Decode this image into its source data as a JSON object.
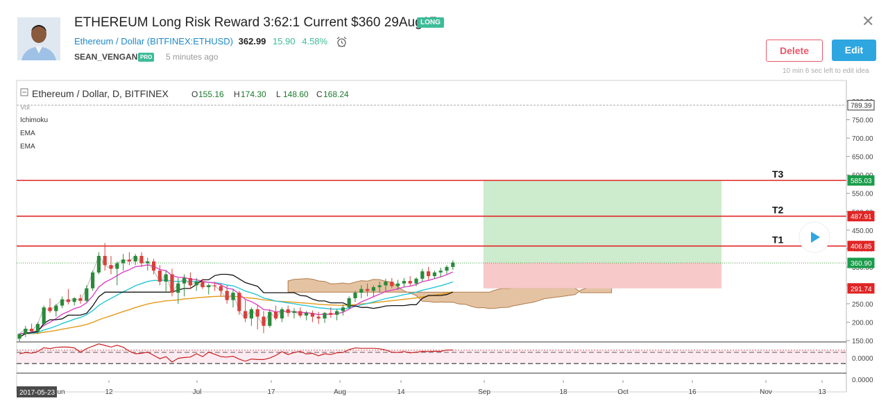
{
  "header": {
    "title": "ETHEREUM Long Risk Reward 3:62:1 Current $360 29Aug17",
    "direction_badge": "LONG",
    "symbol_name": "Ethereum / Dollar",
    "symbol_code": "(BITFINEX:ETHUSD)",
    "price": "362.99",
    "change": "15.90",
    "change_pct": "4.58%",
    "username": "SEAN_VENGAN",
    "user_badge": "PRO",
    "time_ago": "5 minutes ago",
    "delete_label": "Delete",
    "edit_label": "Edit",
    "edit_note": "10 min 6 sec left to edit idea",
    "close_icon": "close-icon"
  },
  "legend": {
    "title": "Ethereum / Dollar, D, BITFINEX",
    "o_label": "O",
    "o": "155.16",
    "h_label": "H",
    "h": "174.30",
    "l_label": "L",
    "l": "148.60",
    "c_label": "C",
    "c": "168.24",
    "indicators": [
      "Vol",
      "Ichimoku",
      "EMA",
      "EMA"
    ]
  },
  "chart_data": {
    "type": "candlestick",
    "symbol": "Ethereum / Dollar, D, BITFINEX",
    "x_ticks": [
      "12",
      "Jul",
      "17",
      "Aug",
      "14",
      "Sep",
      "18",
      "Oct",
      "16",
      "Nov",
      "13"
    ],
    "first_date_label": "2017-05-23",
    "y_ticks": [
      800,
      750,
      700,
      650,
      600,
      550,
      500,
      450,
      400,
      350,
      300,
      250,
      200,
      150
    ],
    "ylim": [
      110,
      820
    ],
    "price_labels": [
      {
        "value": 789.39,
        "text": "789.39",
        "color": "#ffffff",
        "text_color": "#333333"
      },
      {
        "value": 585.03,
        "text": "585.03",
        "color": "#1a9c4a",
        "text_color": "#ffffff"
      },
      {
        "value": 487.91,
        "text": "487.91",
        "color": "#e02424",
        "text_color": "#ffffff"
      },
      {
        "value": 406.85,
        "text": "406.85",
        "color": "#e02424",
        "text_color": "#ffffff"
      },
      {
        "value": 360.9,
        "text": "360.90",
        "color": "#1a9c4a",
        "text_color": "#ffffff"
      },
      {
        "value": 291.74,
        "text": "291.74",
        "color": "#e02424",
        "text_color": "#ffffff"
      }
    ],
    "target_lines": [
      {
        "name": "T3",
        "value": 585.03
      },
      {
        "name": "T2",
        "value": 487.91
      },
      {
        "name": "T1",
        "value": 406.85
      }
    ],
    "position": {
      "entry": 360.9,
      "target": 585.03,
      "stop": 291.74
    },
    "candles": [
      [
        155,
        170,
        148,
        168
      ],
      [
        168,
        190,
        160,
        182
      ],
      [
        182,
        196,
        172,
        175
      ],
      [
        175,
        200,
        168,
        195
      ],
      [
        195,
        245,
        190,
        240
      ],
      [
        240,
        265,
        225,
        230
      ],
      [
        230,
        250,
        215,
        245
      ],
      [
        245,
        270,
        238,
        262
      ],
      [
        262,
        290,
        248,
        255
      ],
      [
        255,
        268,
        245,
        265
      ],
      [
        265,
        275,
        250,
        258
      ],
      [
        258,
        300,
        255,
        292
      ],
      [
        292,
        340,
        285,
        335
      ],
      [
        335,
        390,
        330,
        380
      ],
      [
        380,
        415,
        340,
        355
      ],
      [
        355,
        380,
        330,
        345
      ],
      [
        345,
        365,
        300,
        360
      ],
      [
        360,
        385,
        340,
        370
      ],
      [
        370,
        390,
        355,
        365
      ],
      [
        365,
        385,
        355,
        380
      ],
      [
        380,
        390,
        350,
        360
      ],
      [
        360,
        375,
        340,
        365
      ],
      [
        365,
        372,
        330,
        340
      ],
      [
        340,
        355,
        300,
        310
      ],
      [
        310,
        340,
        280,
        330
      ],
      [
        330,
        345,
        270,
        280
      ],
      [
        280,
        320,
        250,
        305
      ],
      [
        305,
        330,
        270,
        320
      ],
      [
        320,
        335,
        290,
        300
      ],
      [
        300,
        320,
        285,
        310
      ],
      [
        310,
        318,
        290,
        295
      ],
      [
        295,
        305,
        275,
        300
      ],
      [
        300,
        310,
        285,
        298
      ],
      [
        298,
        305,
        270,
        285
      ],
      [
        285,
        300,
        250,
        260
      ],
      [
        260,
        290,
        240,
        280
      ],
      [
        280,
        285,
        220,
        230
      ],
      [
        230,
        260,
        200,
        210
      ],
      [
        210,
        240,
        190,
        235
      ],
      [
        235,
        245,
        180,
        215
      ],
      [
        215,
        230,
        170,
        190
      ],
      [
        190,
        235,
        185,
        228
      ],
      [
        228,
        245,
        205,
        210
      ],
      [
        210,
        240,
        200,
        235
      ],
      [
        235,
        245,
        215,
        225
      ],
      [
        225,
        238,
        210,
        230
      ],
      [
        230,
        240,
        212,
        218
      ],
      [
        218,
        230,
        205,
        225
      ],
      [
        225,
        232,
        200,
        215
      ],
      [
        215,
        228,
        195,
        210
      ],
      [
        210,
        228,
        198,
        225
      ],
      [
        225,
        240,
        212,
        220
      ],
      [
        220,
        235,
        205,
        230
      ],
      [
        230,
        248,
        218,
        240
      ],
      [
        240,
        270,
        235,
        265
      ],
      [
        265,
        285,
        255,
        280
      ],
      [
        280,
        300,
        265,
        290
      ],
      [
        290,
        305,
        270,
        285
      ],
      [
        285,
        300,
        270,
        295
      ],
      [
        295,
        310,
        280,
        300
      ],
      [
        300,
        318,
        285,
        310
      ],
      [
        310,
        320,
        292,
        298
      ],
      [
        298,
        315,
        288,
        305
      ],
      [
        305,
        320,
        295,
        312
      ],
      [
        312,
        325,
        298,
        305
      ],
      [
        305,
        322,
        298,
        318
      ],
      [
        318,
        345,
        310,
        338
      ],
      [
        338,
        350,
        315,
        325
      ],
      [
        325,
        340,
        318,
        335
      ],
      [
        335,
        348,
        322,
        340
      ],
      [
        340,
        355,
        330,
        350
      ],
      [
        350,
        368,
        342,
        362
      ]
    ],
    "position_box": {
      "start_index": 76,
      "end_index": 115
    }
  }
}
